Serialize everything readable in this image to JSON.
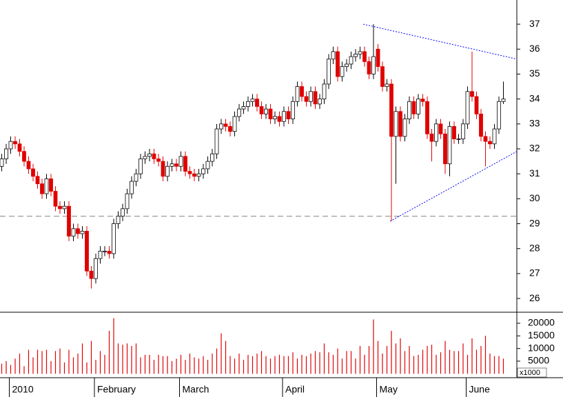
{
  "chart_data": [
    {
      "type": "candlestick",
      "color_up": "#ffffff",
      "color_down": "#e00000",
      "open": [
        31.3,
        31.6,
        32.0,
        32.3,
        32.2,
        31.9,
        31.5,
        31.2,
        30.9,
        30.6,
        30.2,
        30.8,
        30.3,
        29.7,
        29.6,
        29.7,
        28.5,
        28.8,
        28.6,
        28.7,
        27.1,
        26.8,
        27.6,
        27.9,
        27.9,
        27.8,
        29.0,
        29.3,
        29.6,
        30.2,
        30.7,
        31.0,
        31.6,
        31.7,
        31.8,
        31.6,
        31.5,
        30.9,
        31.3,
        31.4,
        31.3,
        31.7,
        31.1,
        31.0,
        30.9,
        31.0,
        31.2,
        31.5,
        31.8,
        32.8,
        33.0,
        32.9,
        32.7,
        33.3,
        33.6,
        33.7,
        33.9,
        34.0,
        33.7,
        33.4,
        33.6,
        33.2,
        33.3,
        33.1,
        33.5,
        33.2,
        33.9,
        34.5,
        34.1,
        33.9,
        34.3,
        33.8,
        34.0,
        34.6,
        35.6,
        35.9,
        34.9,
        35.3,
        35.4,
        35.7,
        35.8,
        35.9,
        35.5,
        35.0,
        36.0,
        35.3,
        34.5,
        34.6,
        32.5,
        33.5,
        32.5,
        33.2,
        33.9,
        33.4,
        34.0,
        33.9,
        32.6,
        32.3,
        33.0,
        32.6,
        31.4,
        32.9,
        32.4,
        32.4,
        33.0,
        34.3,
        34.1,
        33.4,
        32.5,
        32.3,
        32.2,
        32.8,
        33.9
      ],
      "high": [
        31.8,
        32.2,
        32.5,
        32.5,
        32.4,
        32.1,
        31.7,
        31.4,
        31.1,
        30.8,
        31.0,
        31.0,
        30.5,
        29.9,
        29.9,
        29.9,
        29.0,
        29.0,
        28.9,
        28.9,
        27.3,
        27.8,
        28.1,
        28.1,
        28.1,
        29.2,
        29.5,
        29.8,
        30.4,
        30.9,
        31.2,
        31.8,
        31.9,
        32.0,
        32.0,
        31.8,
        31.7,
        31.5,
        31.6,
        31.6,
        31.9,
        31.9,
        31.3,
        31.2,
        31.2,
        31.4,
        31.7,
        32.0,
        33.0,
        33.2,
        33.2,
        33.1,
        33.5,
        33.8,
        33.9,
        34.1,
        34.2,
        34.2,
        33.9,
        33.8,
        33.8,
        33.5,
        33.5,
        33.7,
        33.7,
        34.1,
        34.7,
        34.7,
        34.3,
        34.5,
        34.5,
        34.2,
        34.8,
        35.8,
        36.1,
        36.1,
        35.5,
        35.6,
        35.9,
        36.0,
        36.1,
        36.1,
        35.7,
        37.0,
        36.2,
        35.5,
        34.8,
        34.8,
        33.7,
        33.7,
        33.4,
        34.1,
        34.1,
        34.2,
        34.2,
        34.1,
        32.8,
        33.2,
        33.2,
        32.8,
        33.1,
        33.1,
        32.6,
        33.2,
        34.5,
        35.9,
        34.3,
        33.6,
        32.7,
        32.5,
        33.0,
        34.1,
        34.7
      ],
      "low": [
        31.1,
        31.4,
        31.8,
        32.0,
        31.7,
        31.3,
        31.0,
        30.7,
        30.4,
        30.0,
        30.0,
        30.1,
        29.5,
        29.4,
        29.4,
        28.3,
        28.3,
        28.4,
        28.4,
        26.9,
        26.4,
        26.6,
        27.4,
        27.7,
        27.6,
        27.6,
        28.8,
        29.1,
        29.4,
        30.0,
        30.5,
        30.8,
        31.4,
        31.5,
        31.4,
        31.3,
        30.7,
        30.7,
        31.1,
        31.1,
        31.1,
        30.9,
        30.8,
        30.7,
        30.7,
        30.8,
        31.0,
        31.3,
        31.6,
        32.6,
        32.7,
        32.5,
        32.5,
        33.1,
        33.4,
        33.5,
        33.7,
        33.5,
        33.2,
        33.2,
        33.0,
        33.0,
        32.9,
        32.9,
        33.0,
        33.0,
        33.7,
        33.9,
        33.7,
        33.7,
        33.6,
        33.6,
        33.8,
        34.4,
        35.4,
        34.7,
        34.7,
        35.1,
        35.2,
        35.5,
        35.6,
        35.3,
        34.8,
        34.8,
        35.1,
        34.3,
        34.3,
        29.1,
        30.6,
        32.3,
        32.3,
        33.0,
        33.2,
        33.2,
        33.7,
        32.4,
        31.5,
        32.1,
        32.4,
        31.0,
        30.9,
        32.2,
        32.2,
        32.2,
        32.8,
        33.9,
        33.2,
        32.3,
        31.3,
        32.0,
        32.0,
        32.6,
        33.8
      ],
      "close": [
        31.6,
        32.0,
        32.3,
        32.2,
        31.9,
        31.5,
        31.2,
        30.9,
        30.6,
        30.2,
        30.8,
        30.3,
        29.7,
        29.6,
        29.7,
        28.5,
        28.8,
        28.6,
        28.7,
        27.1,
        26.8,
        27.6,
        27.9,
        27.9,
        27.8,
        29.0,
        29.3,
        29.6,
        30.2,
        30.7,
        31.0,
        31.6,
        31.7,
        31.8,
        31.6,
        31.5,
        30.9,
        31.3,
        31.4,
        31.3,
        31.7,
        31.1,
        31.0,
        30.9,
        31.0,
        31.2,
        31.5,
        31.8,
        32.8,
        33.0,
        32.9,
        32.7,
        33.3,
        33.6,
        33.7,
        33.9,
        34.0,
        33.7,
        33.4,
        33.6,
        33.2,
        33.3,
        33.1,
        33.5,
        33.2,
        33.9,
        34.5,
        34.1,
        33.9,
        34.3,
        33.8,
        34.0,
        34.6,
        35.6,
        35.9,
        34.9,
        35.3,
        35.4,
        35.7,
        35.8,
        35.9,
        35.5,
        35.0,
        35.7,
        35.3,
        34.5,
        34.6,
        32.5,
        33.5,
        32.5,
        33.2,
        33.9,
        33.4,
        34.0,
        33.9,
        32.6,
        32.3,
        33.0,
        32.6,
        31.4,
        32.9,
        32.4,
        32.4,
        33.0,
        34.3,
        34.1,
        33.4,
        32.5,
        32.3,
        32.2,
        32.8,
        33.9,
        34.0
      ],
      "ylim": [
        25.45,
        37.97
      ],
      "yticks": [
        26,
        27,
        28,
        29,
        30,
        31,
        32,
        33,
        34,
        35,
        36,
        37
      ],
      "hline": 29.3,
      "hline_color": "#808080",
      "trend_lines": [
        {
          "x": [
            80.8,
            115.1
          ],
          "y": [
            37.0,
            35.6
          ],
          "color": "#0000ff"
        },
        {
          "x": [
            86.8,
            115.1
          ],
          "y": [
            29.1,
            31.9
          ],
          "color": "#0000ff"
        }
      ]
    },
    {
      "type": "bar",
      "color": "#e00000",
      "categories": [
        null,
        null,
        "2010",
        null,
        null,
        null,
        null,
        null,
        null,
        null,
        null,
        null,
        null,
        null,
        null,
        null,
        null,
        null,
        null,
        null,
        null,
        "February",
        null,
        null,
        null,
        null,
        null,
        null,
        null,
        null,
        null,
        null,
        null,
        null,
        null,
        null,
        null,
        null,
        null,
        null,
        "March",
        null,
        null,
        null,
        null,
        null,
        null,
        null,
        null,
        null,
        null,
        null,
        null,
        null,
        null,
        null,
        null,
        null,
        null,
        null,
        null,
        null,
        null,
        "April",
        null,
        null,
        null,
        null,
        null,
        null,
        null,
        null,
        null,
        null,
        null,
        null,
        null,
        null,
        null,
        null,
        null,
        null,
        null,
        null,
        "May",
        null,
        null,
        null,
        null,
        null,
        null,
        null,
        null,
        null,
        null,
        null,
        null,
        null,
        null,
        null,
        null,
        null,
        null,
        null,
        "June",
        null,
        null,
        null,
        null,
        null,
        null,
        null,
        null
      ],
      "values": [
        4000,
        5000,
        3500,
        6000,
        8000,
        3000,
        9500,
        6500,
        9500,
        9000,
        9500,
        5000,
        9000,
        10000,
        4500,
        9500,
        6500,
        8000,
        12000,
        4500,
        13000,
        5500,
        9000,
        7500,
        17000,
        22000,
        12000,
        11500,
        12000,
        11000,
        12000,
        6500,
        7500,
        7500,
        5500,
        7500,
        7000,
        7000,
        5000,
        6000,
        7500,
        5500,
        8000,
        6500,
        6000,
        7000,
        5500,
        8000,
        10000,
        16000,
        13000,
        7000,
        6000,
        8000,
        5500,
        7500,
        7000,
        8000,
        9000,
        7000,
        6000,
        7000,
        7500,
        7000,
        7000,
        8500,
        6000,
        7500,
        7000,
        8000,
        9000,
        8500,
        12000,
        8500,
        7500,
        10000,
        6000,
        9000,
        9000,
        6000,
        11000,
        7500,
        11000,
        21500,
        13000,
        8000,
        11000,
        17000,
        12000,
        14000,
        9000,
        11000,
        7000,
        7500,
        9500,
        11000,
        11500,
        7500,
        8500,
        13000,
        9500,
        9000,
        9000,
        12000,
        7500,
        14000,
        9500,
        11000,
        15000,
        8000,
        7000,
        7000,
        6000
      ],
      "ylim": [
        -1555,
        23818
      ],
      "yticks": [
        5000,
        10000,
        15000,
        20000
      ],
      "unit_label": "x1000"
    }
  ]
}
